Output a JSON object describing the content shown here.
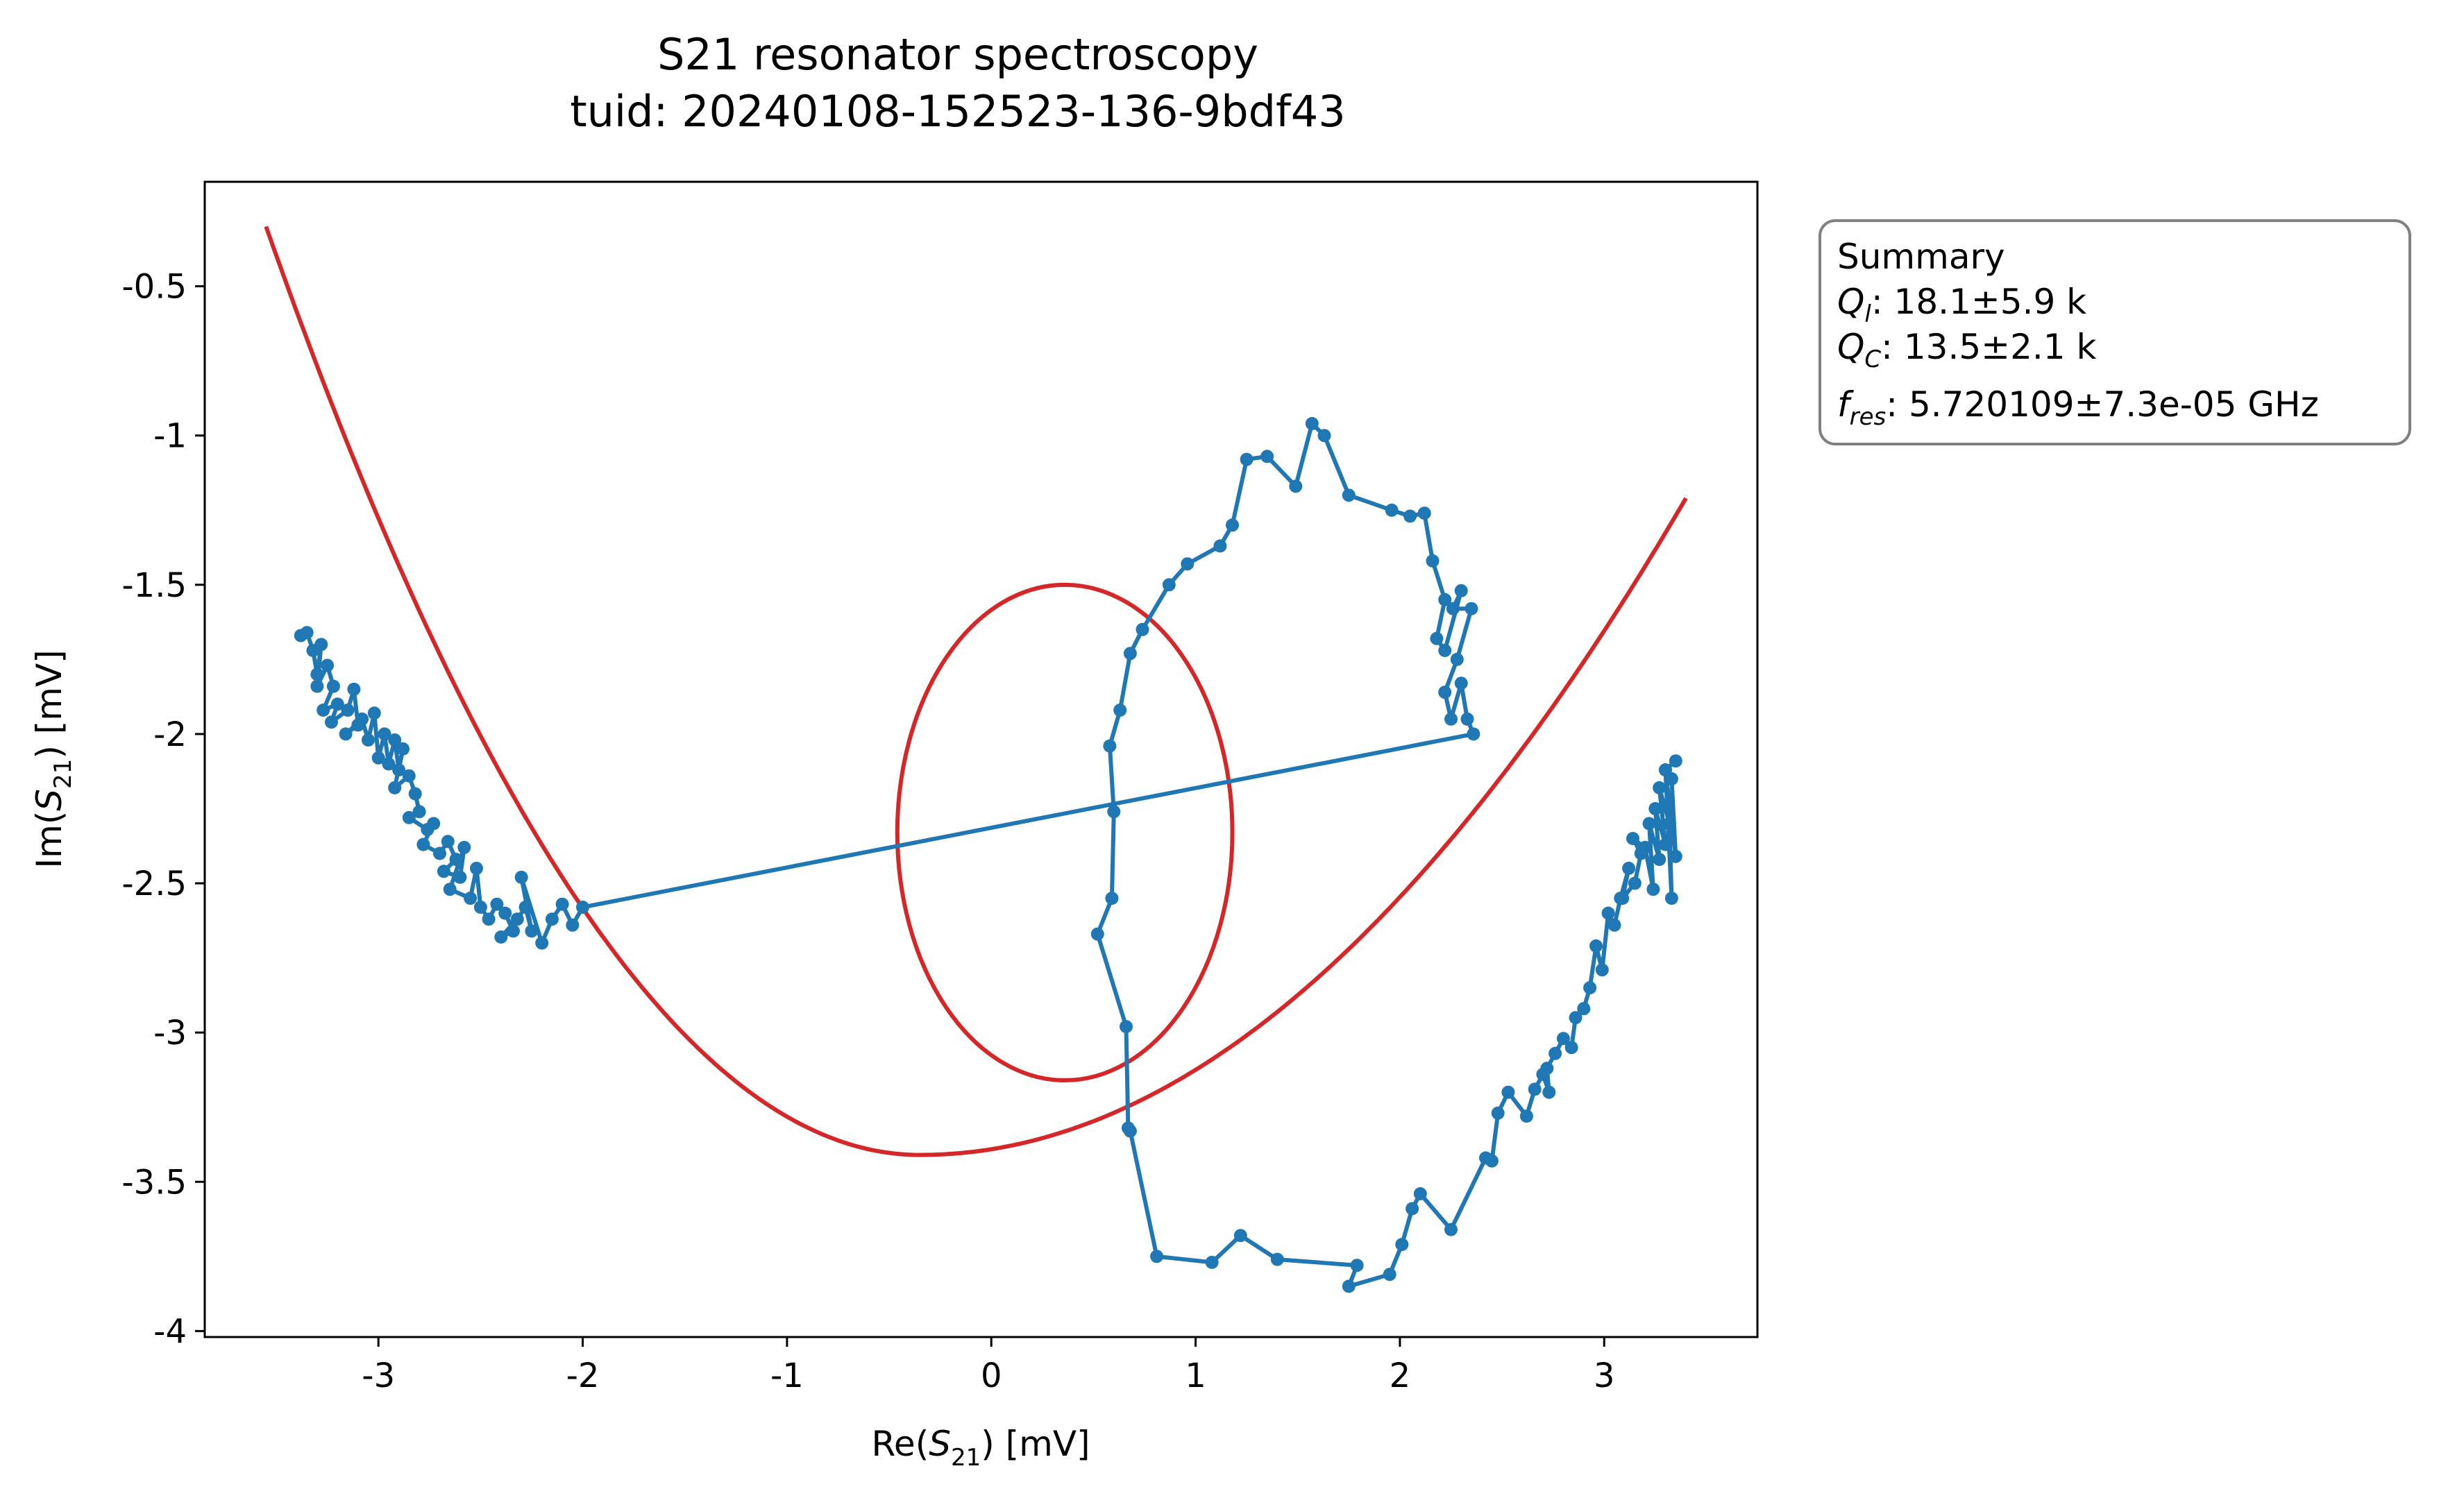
{
  "chart_data": {
    "type": "scatter",
    "title": "S21 resonator spectroscopy",
    "subtitle": "tuid: 20240108-152523-136-9bdf43",
    "xlabel": "Re(S21) [mV]",
    "ylabel": "Im(S21) [mV]",
    "xlim": [
      -3.85,
      3.75
    ],
    "ylim": [
      -4.02,
      -0.15
    ],
    "x_ticks": [
      {
        "value": -3,
        "label": "-3"
      },
      {
        "value": -2,
        "label": "-2"
      },
      {
        "value": -1,
        "label": "-1"
      },
      {
        "value": 0,
        "label": "0"
      },
      {
        "value": 1,
        "label": "1"
      },
      {
        "value": 2,
        "label": "2"
      },
      {
        "value": 3,
        "label": "3"
      }
    ],
    "y_ticks": [
      {
        "value": -0.5,
        "label": "-0.5"
      },
      {
        "value": -1,
        "label": "-1"
      },
      {
        "value": -1.5,
        "label": "-1.5"
      },
      {
        "value": -2,
        "label": "-2"
      },
      {
        "value": -2.5,
        "label": "-2.5"
      },
      {
        "value": -3,
        "label": "-3"
      },
      {
        "value": -3.5,
        "label": "-3.5"
      },
      {
        "value": -4,
        "label": "-4"
      }
    ],
    "grid": false,
    "data_color": "#1f77b4",
    "fit_color": "#d62728",
    "data_points": [
      [
        -3.38,
        -1.67
      ],
      [
        -3.35,
        -1.66
      ],
      [
        -3.32,
        -1.72
      ],
      [
        -3.3,
        -1.8
      ],
      [
        -3.28,
        -1.7
      ],
      [
        -3.3,
        -1.84
      ],
      [
        -3.25,
        -1.77
      ],
      [
        -3.22,
        -1.84
      ],
      [
        -3.27,
        -1.92
      ],
      [
        -3.2,
        -1.9
      ],
      [
        -3.23,
        -1.96
      ],
      [
        -3.15,
        -1.92
      ],
      [
        -3.12,
        -1.85
      ],
      [
        -3.1,
        -1.97
      ],
      [
        -3.16,
        -2.0
      ],
      [
        -3.08,
        -1.95
      ],
      [
        -3.05,
        -2.02
      ],
      [
        -3.02,
        -1.93
      ],
      [
        -3.0,
        -2.08
      ],
      [
        -2.97,
        -2.0
      ],
      [
        -2.95,
        -2.1
      ],
      [
        -2.92,
        -2.02
      ],
      [
        -2.9,
        -2.12
      ],
      [
        -2.88,
        -2.05
      ],
      [
        -2.92,
        -2.18
      ],
      [
        -2.85,
        -2.14
      ],
      [
        -2.82,
        -2.2
      ],
      [
        -2.8,
        -2.26
      ],
      [
        -2.85,
        -2.28
      ],
      [
        -2.76,
        -2.32
      ],
      [
        -2.73,
        -2.3
      ],
      [
        -2.78,
        -2.37
      ],
      [
        -2.7,
        -2.4
      ],
      [
        -2.66,
        -2.36
      ],
      [
        -2.62,
        -2.42
      ],
      [
        -2.68,
        -2.46
      ],
      [
        -2.6,
        -2.48
      ],
      [
        -2.58,
        -2.38
      ],
      [
        -2.65,
        -2.52
      ],
      [
        -2.55,
        -2.55
      ],
      [
        -2.52,
        -2.45
      ],
      [
        -2.5,
        -2.58
      ],
      [
        -2.46,
        -2.62
      ],
      [
        -2.42,
        -2.57
      ],
      [
        -2.38,
        -2.6
      ],
      [
        -2.34,
        -2.66
      ],
      [
        -2.4,
        -2.68
      ],
      [
        -2.32,
        -2.62
      ],
      [
        -2.28,
        -2.58
      ],
      [
        -2.25,
        -2.66
      ],
      [
        -2.3,
        -2.48
      ],
      [
        -2.2,
        -2.7
      ],
      [
        -2.15,
        -2.62
      ],
      [
        -2.1,
        -2.57
      ],
      [
        -2.05,
        -2.64
      ],
      [
        -2.0,
        -2.58
      ],
      [
        2.36,
        -2.0
      ],
      [
        2.33,
        -1.95
      ],
      [
        2.3,
        -1.83
      ],
      [
        2.25,
        -1.95
      ],
      [
        2.22,
        -1.86
      ],
      [
        2.28,
        -1.75
      ],
      [
        2.35,
        -1.58
      ],
      [
        2.26,
        -1.58
      ],
      [
        2.3,
        -1.52
      ],
      [
        2.22,
        -1.72
      ],
      [
        2.18,
        -1.68
      ],
      [
        2.22,
        -1.55
      ],
      [
        2.16,
        -1.42
      ],
      [
        2.12,
        -1.26
      ],
      [
        2.05,
        -1.27
      ],
      [
        1.96,
        -1.25
      ],
      [
        1.75,
        -1.2
      ],
      [
        1.63,
        -1.0
      ],
      [
        1.57,
        -0.96
      ],
      [
        1.49,
        -1.17
      ],
      [
        1.35,
        -1.07
      ],
      [
        1.25,
        -1.08
      ],
      [
        1.18,
        -1.3
      ],
      [
        1.12,
        -1.37
      ],
      [
        0.96,
        -1.43
      ],
      [
        0.87,
        -1.5
      ],
      [
        0.74,
        -1.65
      ],
      [
        0.68,
        -1.73
      ],
      [
        0.63,
        -1.92
      ],
      [
        0.58,
        -2.04
      ],
      [
        0.6,
        -2.26
      ],
      [
        0.59,
        -2.55
      ],
      [
        0.52,
        -2.67
      ],
      [
        0.66,
        -2.98
      ],
      [
        0.67,
        -3.32
      ],
      [
        0.68,
        -3.33
      ],
      [
        0.81,
        -3.75
      ],
      [
        1.08,
        -3.77
      ],
      [
        1.22,
        -3.68
      ],
      [
        1.4,
        -3.76
      ],
      [
        1.79,
        -3.78
      ],
      [
        1.75,
        -3.85
      ],
      [
        1.95,
        -3.81
      ],
      [
        2.01,
        -3.71
      ],
      [
        2.06,
        -3.59
      ],
      [
        2.1,
        -3.54
      ],
      [
        2.25,
        -3.66
      ],
      [
        2.42,
        -3.42
      ],
      [
        2.45,
        -3.43
      ],
      [
        2.48,
        -3.27
      ],
      [
        2.53,
        -3.2
      ],
      [
        2.62,
        -3.28
      ],
      [
        2.66,
        -3.19
      ],
      [
        2.7,
        -3.14
      ],
      [
        2.73,
        -3.2
      ],
      [
        2.72,
        -3.12
      ],
      [
        2.76,
        -3.07
      ],
      [
        2.8,
        -3.02
      ],
      [
        2.84,
        -3.05
      ],
      [
        2.86,
        -2.95
      ],
      [
        2.9,
        -2.92
      ],
      [
        2.93,
        -2.85
      ],
      [
        2.96,
        -2.71
      ],
      [
        2.99,
        -2.79
      ],
      [
        3.02,
        -2.6
      ],
      [
        3.05,
        -2.64
      ],
      [
        3.08,
        -2.55
      ],
      [
        3.12,
        -2.45
      ],
      [
        3.09,
        -2.55
      ],
      [
        3.15,
        -2.5
      ],
      [
        3.18,
        -2.4
      ],
      [
        3.14,
        -2.35
      ],
      [
        3.2,
        -2.38
      ],
      [
        3.24,
        -2.52
      ],
      [
        3.22,
        -2.3
      ],
      [
        3.27,
        -2.42
      ],
      [
        3.25,
        -2.25
      ],
      [
        3.3,
        -2.37
      ],
      [
        3.27,
        -2.18
      ],
      [
        3.32,
        -2.3
      ],
      [
        3.33,
        -2.55
      ],
      [
        3.3,
        -2.12
      ],
      [
        3.35,
        -2.41
      ],
      [
        3.33,
        -2.15
      ],
      [
        3.3,
        -2.12
      ],
      [
        3.35,
        -2.09
      ]
    ],
    "fit_curve": {
      "ellipse_center": [
        0.36,
        -2.33
      ],
      "ellipse_radii": [
        0.82,
        0.83
      ],
      "parabola_vertex": [
        -0.35,
        -3.41
      ],
      "parabola_x_range": [
        -3.55,
        3.4
      ]
    },
    "summary_box": {
      "heading": "Summary",
      "lines": [
        {
          "symbol": "Q",
          "sub": "l",
          "value": ": 18.1±5.9 k"
        },
        {
          "symbol": "Q",
          "sub": "C",
          "value": ": 13.5±2.1 k"
        },
        {
          "symbol": "f",
          "sub": "res",
          "value": ": 5.720109±7.3e-05 GHz"
        }
      ],
      "placement": "outside-right-top"
    }
  }
}
